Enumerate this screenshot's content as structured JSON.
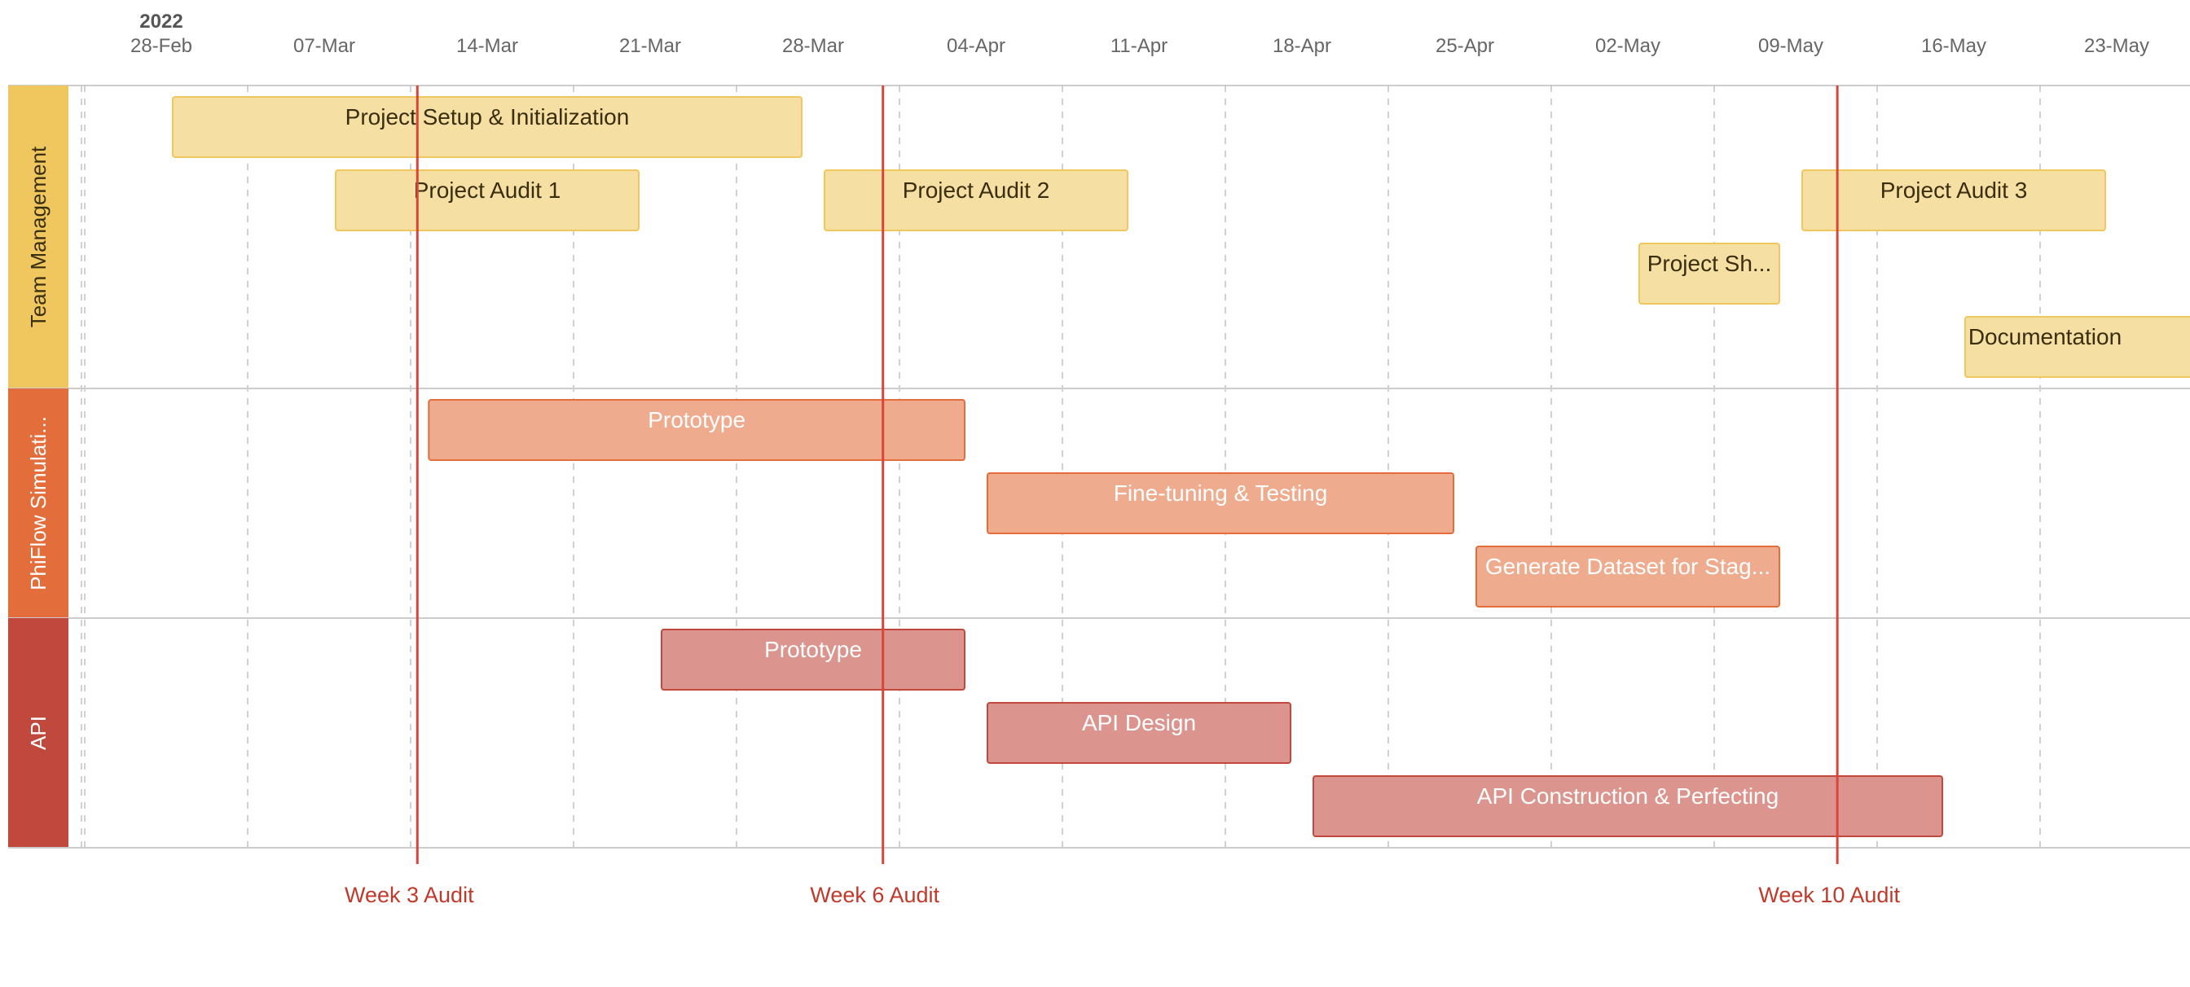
{
  "chart_data": {
    "type": "gantt",
    "year_label": "2022",
    "x_ticks": [
      "28-Feb",
      "07-Mar",
      "14-Mar",
      "21-Mar",
      "28-Mar",
      "04-Apr",
      "11-Apr",
      "18-Apr",
      "25-Apr",
      "02-May",
      "09-May",
      "16-May",
      "23-May"
    ],
    "groups": [
      {
        "name": "Team Management",
        "color": "#EFC75E",
        "tasks": [
          {
            "label": "Project Setup & Initialization",
            "start": "2022-02-28",
            "end": "2022-03-28",
            "row": 0
          },
          {
            "label": "Project Audit 1",
            "start": "2022-03-07",
            "end": "2022-03-21",
            "row": 1
          },
          {
            "label": "Project Audit 2",
            "start": "2022-03-28",
            "end": "2022-04-11",
            "row": 1
          },
          {
            "label": "Project Audit 3",
            "start": "2022-05-09",
            "end": "2022-05-23",
            "row": 1
          },
          {
            "label": "Project Sh...",
            "start": "2022-05-02",
            "end": "2022-05-09",
            "row": 2
          },
          {
            "label": "Documentation",
            "start": "2022-05-16",
            "end": "2022-05-30",
            "row": 3
          }
        ]
      },
      {
        "name": "PhiFlow Simulati...",
        "color": "#E36E3C",
        "tasks": [
          {
            "label": "Prototype",
            "start": "2022-03-11",
            "end": "2022-04-04",
            "row": 0
          },
          {
            "label": "Fine-tuning & Testing",
            "start": "2022-04-04",
            "end": "2022-04-25",
            "row": 1
          },
          {
            "label": "Generate Dataset for Stag...",
            "start": "2022-04-25",
            "end": "2022-05-09",
            "row": 2
          }
        ]
      },
      {
        "name": "API",
        "color": "#C1483D",
        "tasks": [
          {
            "label": "Prototype",
            "start": "2022-03-21",
            "end": "2022-04-04",
            "row": 0
          },
          {
            "label": "API Design",
            "start": "2022-04-04",
            "end": "2022-04-18",
            "row": 1
          },
          {
            "label": "API Construction & Perfecting",
            "start": "2022-04-18",
            "end": "2022-05-16",
            "row": 2
          }
        ]
      }
    ],
    "milestones": [
      {
        "label": "Week 3 Audit",
        "date": "2022-03-11"
      },
      {
        "label": "Week 6 Audit",
        "date": "2022-03-31"
      },
      {
        "label": "Week 10 Audit",
        "date": "2022-05-11"
      }
    ],
    "colors": {
      "milestone": "#D9453B",
      "milestone_text": "#C0392B",
      "tick_text": "#666666",
      "year_text": "#555555",
      "grid": "#D0D0D0",
      "row_border": "#CCCCCC"
    }
  }
}
